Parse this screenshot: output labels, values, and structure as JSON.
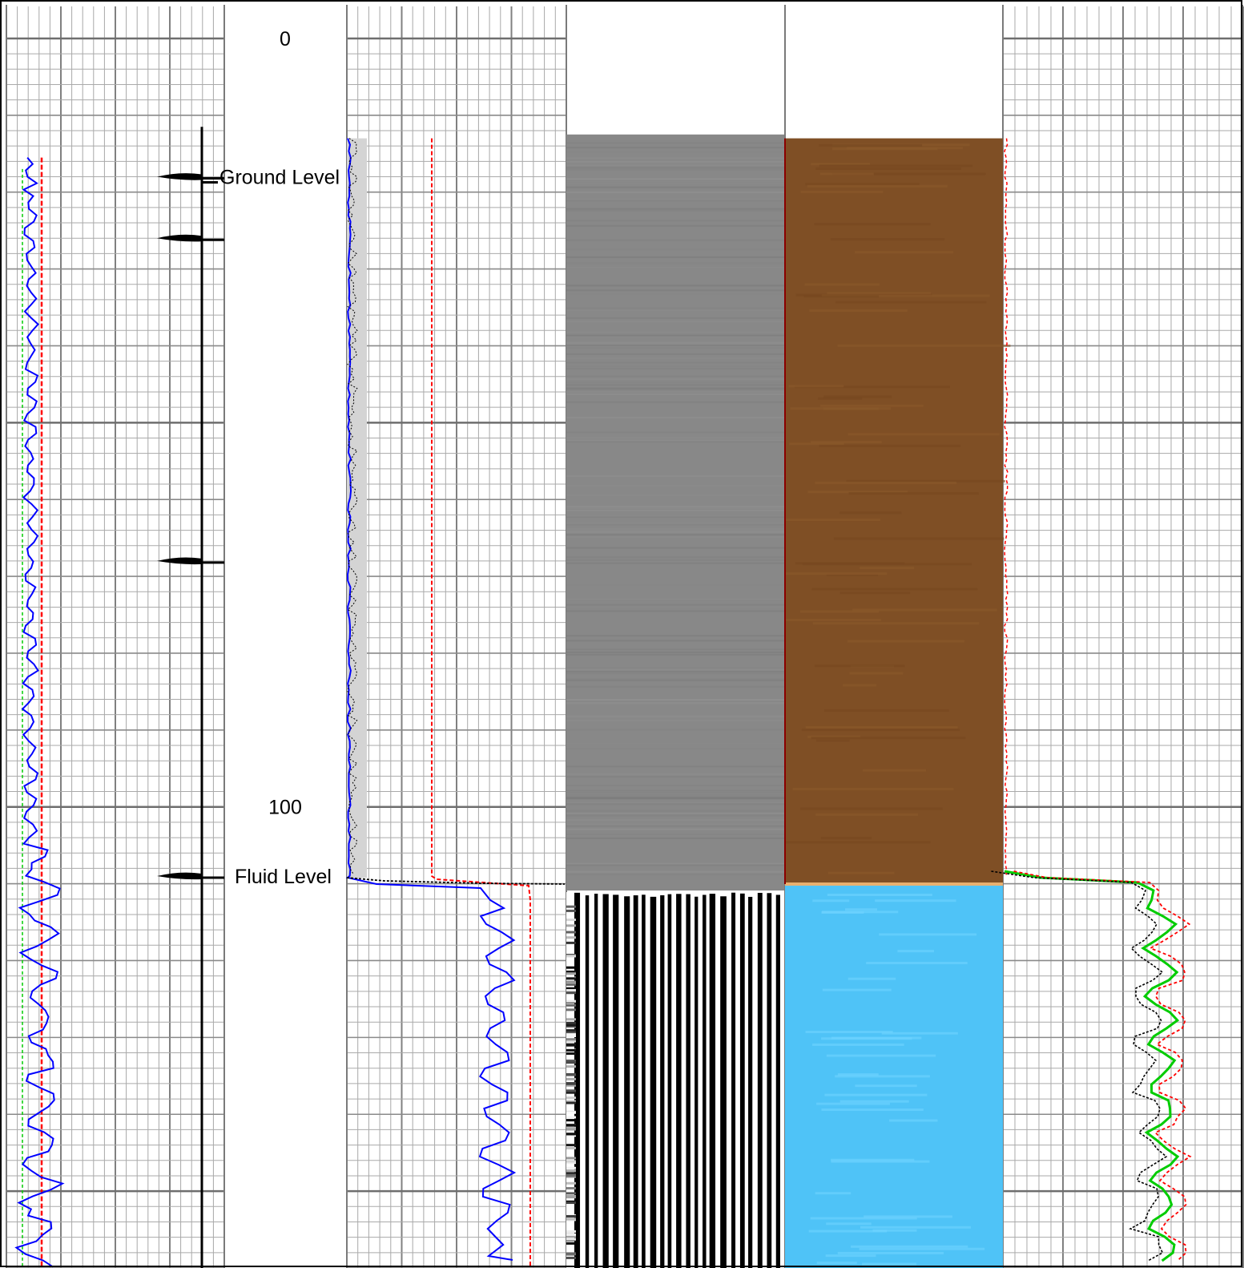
{
  "chart_data": {
    "type": "line",
    "title": "",
    "depth_ticks": [
      "0",
      "100"
    ],
    "annotations": [
      {
        "text": "Ground Level",
        "depth": 18
      },
      {
        "text": "Fluid Level",
        "depth": 109
      }
    ],
    "casing_collar_markers": [
      18,
      26,
      68,
      109
    ],
    "depth_range": [
      -5,
      160
    ],
    "fluid_level_depth": 109,
    "log_start_depth": 13,
    "tracks": [
      {
        "id": "track-1",
        "curves": [
          {
            "name": "",
            "color": "#0000ff",
            "style": "solid"
          },
          {
            "name": "",
            "color": "#ff0000",
            "style": "dashed"
          },
          {
            "name": "",
            "color": "#00cc00",
            "style": "dashed"
          }
        ]
      },
      {
        "id": "depth-track"
      },
      {
        "id": "track-2",
        "curves": [
          {
            "name": "",
            "color": "#0000ff",
            "style": "solid",
            "values": [
              1,
              0.2,
              0.2,
              6.5,
              7.3
            ]
          },
          {
            "name": "",
            "color": "#ff0000",
            "style": "dashed",
            "values": [
              4,
              4,
              4.3,
              8.3,
              8.3
            ]
          },
          {
            "name": "",
            "color": "#000000",
            "style": "dashed"
          }
        ]
      },
      {
        "id": "variable-density-track",
        "colors": [
          "#888888",
          "#000000",
          "#ffffff"
        ]
      },
      {
        "id": "image-track",
        "colors": [
          "#7f4f25",
          "#4fc3f7"
        ]
      },
      {
        "id": "track-5",
        "curves": [
          {
            "name": "",
            "color": "#00cc00",
            "style": "solid"
          },
          {
            "name": "",
            "color": "#ff0000",
            "style": "dashed"
          },
          {
            "name": "",
            "color": "#000000",
            "style": "dashed"
          }
        ]
      }
    ]
  }
}
